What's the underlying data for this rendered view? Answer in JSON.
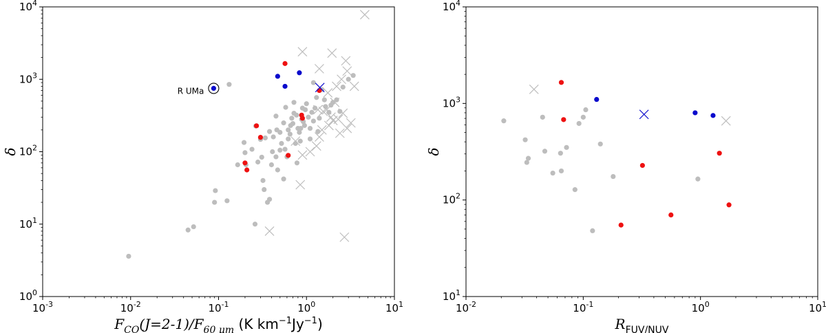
{
  "colors": {
    "grey": "#bdbdbd",
    "red": "#ee1111",
    "blue": "#0a0acc"
  },
  "chart_data": [
    {
      "type": "scatter",
      "xscale": "log",
      "yscale": "log",
      "xlim": [
        0.001,
        10
      ],
      "ylim": [
        1,
        10000
      ],
      "xticks": [
        {
          "v": 0.001,
          "b": "10",
          "e": "-3"
        },
        {
          "v": 0.01,
          "b": "10",
          "e": "-2"
        },
        {
          "v": 0.1,
          "b": "10",
          "e": "-1"
        },
        {
          "v": 1,
          "b": "10",
          "e": "0"
        },
        {
          "v": 10,
          "b": "10",
          "e": "1"
        }
      ],
      "yticks": [
        {
          "v": 1,
          "b": "10",
          "e": "0"
        },
        {
          "v": 10,
          "b": "10",
          "e": "1"
        },
        {
          "v": 100,
          "b": "10",
          "e": "2"
        },
        {
          "v": 1000,
          "b": "10",
          "e": "3"
        },
        {
          "v": 10000,
          "b": "10",
          "e": "4"
        }
      ],
      "xlabel": {
        "main": "F",
        "sub1": "CO",
        "mid": "(J=2-1)/F",
        "sub2": "60 μm",
        "units": " (K km",
        "e1": "−1",
        "units2": "Jy",
        "e2": "−1",
        "close": ")"
      },
      "ylabel": "δ",
      "annotation": {
        "text": "R UMa",
        "x": 0.088,
        "y": 750
      },
      "series": [
        {
          "marker": "dot",
          "color": "grey",
          "points": [
            [
              0.0095,
              3.6
            ],
            [
              0.045,
              8.3
            ],
            [
              0.052,
              9.2
            ],
            [
              0.09,
              20
            ],
            [
              0.092,
              29
            ],
            [
              0.125,
              21
            ],
            [
              0.165,
              66
            ],
            [
              0.132,
              850
            ],
            [
              0.195,
              134
            ],
            [
              0.2,
              97
            ],
            [
              0.205,
              66
            ],
            [
              0.24,
              108
            ],
            [
              0.26,
              10
            ],
            [
              0.265,
              226
            ],
            [
              0.28,
              72
            ],
            [
              0.3,
              148
            ],
            [
              0.31,
              84
            ],
            [
              0.32,
              40
            ],
            [
              0.33,
              30
            ],
            [
              0.34,
              155
            ],
            [
              0.36,
              20
            ],
            [
              0.38,
              22
            ],
            [
              0.4,
              66
            ],
            [
              0.41,
              100
            ],
            [
              0.45,
              85
            ],
            [
              0.46,
              200
            ],
            [
              0.47,
              56
            ],
            [
              0.5,
              105
            ],
            [
              0.52,
              130
            ],
            [
              0.55,
              42
            ],
            [
              0.57,
              108
            ],
            [
              0.6,
              85
            ],
            [
              0.62,
              200
            ],
            [
              0.65,
              175
            ],
            [
              0.68,
              290
            ],
            [
              0.7,
              245
            ],
            [
              0.72,
              340
            ],
            [
              0.75,
              130
            ],
            [
              0.78,
              70
            ],
            [
              0.8,
              210
            ],
            [
              0.83,
              185
            ],
            [
              0.85,
              140
            ],
            [
              0.9,
              400
            ],
            [
              0.92,
              260
            ],
            [
              0.95,
              230
            ],
            [
              1.0,
              460
            ],
            [
              1.05,
              300
            ],
            [
              1.1,
              210
            ],
            [
              1.15,
              350
            ],
            [
              1.2,
              265
            ],
            [
              1.25,
              400
            ],
            [
              1.3,
              560
            ],
            [
              1.35,
              190
            ],
            [
              1.4,
              290
            ],
            [
              1.5,
              720
            ],
            [
              1.6,
              520
            ],
            [
              1.65,
              420
            ],
            [
              1.8,
              350
            ],
            [
              1.9,
              440
            ],
            [
              2.0,
              480
            ],
            [
              2.2,
              520
            ],
            [
              2.4,
              360
            ],
            [
              2.6,
              780
            ],
            [
              3.0,
              1000
            ],
            [
              3.4,
              1130
            ],
            [
              0.55,
              250
            ],
            [
              0.62,
              150
            ],
            [
              0.45,
              310
            ],
            [
              0.38,
              190
            ],
            [
              0.58,
              410
            ],
            [
              0.86,
              210
            ],
            [
              1.2,
              900
            ],
            [
              0.97,
              380
            ],
            [
              0.72,
              480
            ],
            [
              0.5,
              185
            ],
            [
              0.42,
              160
            ],
            [
              1.1,
              150
            ],
            [
              0.66,
              230
            ],
            [
              0.77,
              320
            ],
            [
              0.88,
              280
            ]
          ]
        },
        {
          "marker": "x",
          "color": "grey",
          "points": [
            [
              4.6,
              7800
            ],
            [
              0.9,
              2400
            ],
            [
              1.95,
              2300
            ],
            [
              2.8,
              1800
            ],
            [
              2.9,
              1300
            ],
            [
              1.4,
              1400
            ],
            [
              2.5,
              1000
            ],
            [
              3.5,
              800
            ],
            [
              1.35,
              380
            ],
            [
              1.55,
              360
            ],
            [
              1.7,
              380
            ],
            [
              1.9,
              300
            ],
            [
              2.0,
              270
            ],
            [
              2.3,
              280
            ],
            [
              2.6,
              340
            ],
            [
              1.8,
              230
            ],
            [
              1.5,
              200
            ],
            [
              1.4,
              160
            ],
            [
              1.3,
              120
            ],
            [
              2.4,
              180
            ],
            [
              2.9,
              210
            ],
            [
              3.2,
              250
            ],
            [
              0.85,
              35
            ],
            [
              0.38,
              8
            ],
            [
              2.7,
              6.6
            ],
            [
              0.9,
              90
            ],
            [
              0.75,
              140
            ],
            [
              1.1,
              100
            ],
            [
              2.1,
              480
            ],
            [
              1.75,
              650
            ],
            [
              2.2,
              800
            ]
          ]
        },
        {
          "marker": "dot",
          "color": "red",
          "points": [
            [
              0.57,
              1650
            ],
            [
              1.4,
              700
            ],
            [
              0.88,
              320
            ],
            [
              0.9,
              290
            ],
            [
              0.27,
              228
            ],
            [
              0.3,
              158
            ],
            [
              0.2,
              70
            ],
            [
              0.21,
              56
            ],
            [
              0.62,
              89
            ]
          ]
        },
        {
          "marker": "dot",
          "color": "blue",
          "points": [
            [
              0.47,
              1100
            ],
            [
              0.83,
              1230
            ],
            [
              0.57,
              800
            ],
            [
              0.088,
              750
            ]
          ]
        },
        {
          "marker": "x",
          "color": "blue",
          "points": [
            [
              1.42,
              770
            ]
          ]
        },
        {
          "marker": "circle",
          "color": "black",
          "points": [
            [
              0.088,
              750
            ]
          ]
        }
      ]
    },
    {
      "type": "scatter",
      "xscale": "log",
      "yscale": "log",
      "xlim": [
        0.01,
        10
      ],
      "ylim": [
        10,
        10000
      ],
      "xticks": [
        {
          "v": 0.01,
          "b": "10",
          "e": "-2"
        },
        {
          "v": 0.1,
          "b": "10",
          "e": "-1"
        },
        {
          "v": 1,
          "b": "10",
          "e": "0"
        },
        {
          "v": 10,
          "b": "10",
          "e": "1"
        }
      ],
      "yticks": [
        {
          "v": 10,
          "b": "10",
          "e": "1"
        },
        {
          "v": 100,
          "b": "10",
          "e": "2"
        },
        {
          "v": 1000,
          "b": "10",
          "e": "3"
        },
        {
          "v": 10000,
          "b": "10",
          "e": "4"
        }
      ],
      "xlabel": {
        "main": "R",
        "sub": "FUV/NUV"
      },
      "ylabel": "δ",
      "series": [
        {
          "marker": "dot",
          "color": "grey",
          "points": [
            [
              0.021,
              660
            ],
            [
              0.032,
              420
            ],
            [
              0.033,
              245
            ],
            [
              0.034,
              270
            ],
            [
              0.045,
              720
            ],
            [
              0.047,
              320
            ],
            [
              0.055,
              190
            ],
            [
              0.065,
              200
            ],
            [
              0.064,
              305
            ],
            [
              0.072,
              350
            ],
            [
              0.085,
              128
            ],
            [
              0.092,
              620
            ],
            [
              0.1,
              720
            ],
            [
              0.105,
              860
            ],
            [
              0.14,
              380
            ],
            [
              0.12,
              48
            ],
            [
              0.18,
              175
            ],
            [
              0.95,
              165
            ]
          ]
        },
        {
          "marker": "x",
          "color": "grey",
          "points": [
            [
              0.038,
              1400
            ],
            [
              1.65,
              660
            ]
          ]
        },
        {
          "marker": "dot",
          "color": "red",
          "points": [
            [
              0.065,
              1650
            ],
            [
              0.068,
              680
            ],
            [
              0.32,
              228
            ],
            [
              1.45,
              305
            ],
            [
              0.21,
              55
            ],
            [
              0.56,
              70
            ],
            [
              1.75,
              89
            ]
          ]
        },
        {
          "marker": "dot",
          "color": "blue",
          "points": [
            [
              0.13,
              1100
            ],
            [
              0.9,
              800
            ],
            [
              1.28,
              750
            ]
          ]
        },
        {
          "marker": "x",
          "color": "blue",
          "points": [
            [
              0.33,
              770
            ]
          ]
        }
      ]
    }
  ]
}
